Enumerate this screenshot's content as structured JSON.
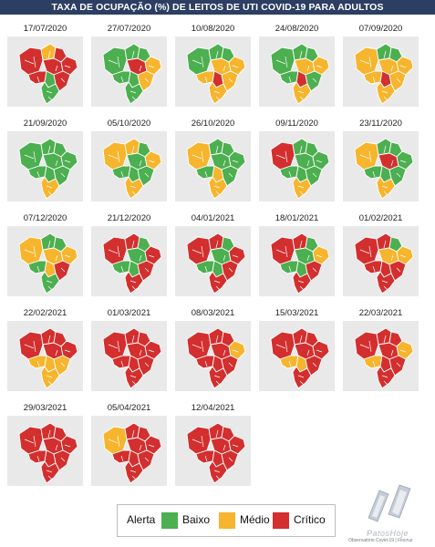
{
  "title": "TAXA DE OCUPAÇÃO (%) DE LEITOS DE UTI COVID-19 PARA ADULTOS",
  "colors": {
    "baixo": "#4caf50",
    "medio": "#f6b52d",
    "critico": "#d32f2f"
  },
  "maps": [
    {
      "date": "17/07/2020",
      "regions": [
        "critico",
        "medio",
        "critico",
        "critico",
        "critico",
        "critico",
        "baixo",
        "critico",
        "baixo"
      ]
    },
    {
      "date": "27/07/2020",
      "regions": [
        "baixo",
        "baixo",
        "baixo",
        "critico",
        "medio",
        "baixo",
        "baixo",
        "medio",
        "baixo"
      ]
    },
    {
      "date": "10/08/2020",
      "regions": [
        "baixo",
        "baixo",
        "baixo",
        "medio",
        "medio",
        "medio",
        "critico",
        "medio",
        "medio"
      ]
    },
    {
      "date": "24/08/2020",
      "regions": [
        "baixo",
        "baixo",
        "baixo",
        "medio",
        "medio",
        "baixo",
        "critico",
        "baixo",
        "medio"
      ]
    },
    {
      "date": "07/09/2020",
      "regions": [
        "medio",
        "baixo",
        "baixo",
        "medio",
        "medio",
        "medio",
        "critico",
        "medio",
        "medio"
      ]
    },
    {
      "date": "21/09/2020",
      "regions": [
        "baixo",
        "baixo",
        "baixo",
        "baixo",
        "baixo",
        "baixo",
        "baixo",
        "baixo",
        "medio"
      ]
    },
    {
      "date": "05/10/2020",
      "regions": [
        "medio",
        "medio",
        "baixo",
        "baixo",
        "medio",
        "baixo",
        "baixo",
        "baixo",
        "medio"
      ]
    },
    {
      "date": "26/10/2020",
      "regions": [
        "medio",
        "baixo",
        "baixo",
        "baixo",
        "baixo",
        "baixo",
        "medio",
        "baixo",
        "medio"
      ]
    },
    {
      "date": "09/11/2020",
      "regions": [
        "critico",
        "baixo",
        "baixo",
        "baixo",
        "baixo",
        "baixo",
        "baixo",
        "baixo",
        "medio"
      ]
    },
    {
      "date": "23/11/2020",
      "regions": [
        "medio",
        "baixo",
        "baixo",
        "critico",
        "baixo",
        "baixo",
        "baixo",
        "baixo",
        "medio"
      ]
    },
    {
      "date": "07/12/2020",
      "regions": [
        "medio",
        "baixo",
        "baixo",
        "medio",
        "medio",
        "baixo",
        "medio",
        "critico",
        "baixo"
      ]
    },
    {
      "date": "21/12/2020",
      "regions": [
        "critico",
        "critico",
        "baixo",
        "baixo",
        "critico",
        "baixo",
        "baixo",
        "critico",
        "critico"
      ]
    },
    {
      "date": "04/01/2021",
      "regions": [
        "critico",
        "critico",
        "baixo",
        "baixo",
        "critico",
        "baixo",
        "baixo",
        "critico",
        "critico"
      ]
    },
    {
      "date": "18/01/2021",
      "regions": [
        "critico",
        "critico",
        "baixo",
        "baixo",
        "medio",
        "baixo",
        "baixo",
        "critico",
        "critico"
      ]
    },
    {
      "date": "01/02/2021",
      "regions": [
        "critico",
        "critico",
        "baixo",
        "medio",
        "medio",
        "critico",
        "critico",
        "critico",
        "critico"
      ]
    },
    {
      "date": "22/02/2021",
      "regions": [
        "critico",
        "critico",
        "critico",
        "critico",
        "critico",
        "medio",
        "medio",
        "medio",
        "medio"
      ]
    },
    {
      "date": "01/03/2021",
      "regions": [
        "critico",
        "critico",
        "critico",
        "critico",
        "critico",
        "critico",
        "critico",
        "critico",
        "critico"
      ]
    },
    {
      "date": "08/03/2021",
      "regions": [
        "critico",
        "critico",
        "critico",
        "critico",
        "medio",
        "critico",
        "critico",
        "critico",
        "critico"
      ]
    },
    {
      "date": "15/03/2021",
      "regions": [
        "critico",
        "critico",
        "critico",
        "critico",
        "critico",
        "medio",
        "medio",
        "critico",
        "critico"
      ]
    },
    {
      "date": "22/03/2021",
      "regions": [
        "critico",
        "critico",
        "critico",
        "critico",
        "medio",
        "medio",
        "critico",
        "critico",
        "critico"
      ]
    },
    {
      "date": "29/03/2021",
      "regions": [
        "critico",
        "critico",
        "critico",
        "critico",
        "critico",
        "critico",
        "critico",
        "critico",
        "critico"
      ]
    },
    {
      "date": "05/04/2021",
      "regions": [
        "medio",
        "critico",
        "critico",
        "critico",
        "critico",
        "critico",
        "critico",
        "critico",
        "critico"
      ]
    },
    {
      "date": "12/04/2021",
      "regions": [
        "critico",
        "critico",
        "critico",
        "critico",
        "critico",
        "critico",
        "critico",
        "critico",
        "critico"
      ]
    }
  ],
  "legend": {
    "title": "Alerta",
    "items": [
      {
        "label": "Baixo",
        "color": "#4caf50"
      },
      {
        "label": "Médio",
        "color": "#f6b52d"
      },
      {
        "label": "Crítico",
        "color": "#d32f2f"
      }
    ]
  },
  "credit": "Observatório Covid-19 | Fiocruz",
  "logo_text": "PatosHoje"
}
